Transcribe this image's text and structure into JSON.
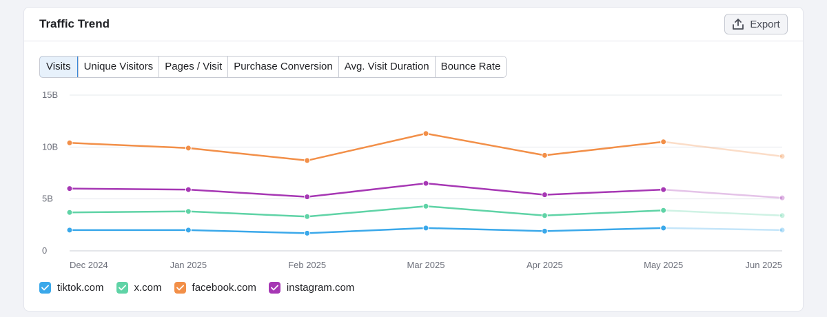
{
  "card": {
    "title": "Traffic Trend",
    "export_label": "Export"
  },
  "tabs": [
    {
      "label": "Visits",
      "active": true
    },
    {
      "label": "Unique Visitors",
      "active": false
    },
    {
      "label": "Pages / Visit",
      "active": false
    },
    {
      "label": "Purchase Conversion",
      "active": false
    },
    {
      "label": "Avg. Visit Duration",
      "active": false
    },
    {
      "label": "Bounce Rate",
      "active": false
    }
  ],
  "legend": [
    {
      "label": "tiktok.com",
      "color": "#3aa8ea",
      "checked": true
    },
    {
      "label": "x.com",
      "color": "#5fd3a6",
      "checked": true
    },
    {
      "label": "facebook.com",
      "color": "#f28f48",
      "checked": true
    },
    {
      "label": "instagram.com",
      "color": "#a637b4",
      "checked": true
    }
  ],
  "chart_data": {
    "type": "line",
    "title": "",
    "xlabel": "",
    "ylabel": "",
    "ylim": [
      0,
      15
    ],
    "y_ticks": [
      "0",
      "5B",
      "10B",
      "15B"
    ],
    "y_tick_values": [
      0,
      5,
      10,
      15
    ],
    "categories": [
      "Dec 2024",
      "Jan 2025",
      "Feb 2025",
      "Mar 2025",
      "Apr 2025",
      "May 2025",
      "Jun 2025"
    ],
    "grid": true,
    "last_point_faded": true,
    "series": [
      {
        "name": "tiktok.com",
        "color": "#3aa8ea",
        "values": [
          2.0,
          2.0,
          1.7,
          2.2,
          1.9,
          2.2,
          2.0
        ]
      },
      {
        "name": "x.com",
        "color": "#5fd3a6",
        "values": [
          3.7,
          3.8,
          3.3,
          4.3,
          3.4,
          3.9,
          3.4
        ]
      },
      {
        "name": "facebook.com",
        "color": "#f28f48",
        "values": [
          10.4,
          9.9,
          8.7,
          11.3,
          9.2,
          10.5,
          9.1
        ]
      },
      {
        "name": "instagram.com",
        "color": "#a637b4",
        "values": [
          6.0,
          5.9,
          5.2,
          6.5,
          5.4,
          5.9,
          5.1
        ]
      }
    ]
  }
}
